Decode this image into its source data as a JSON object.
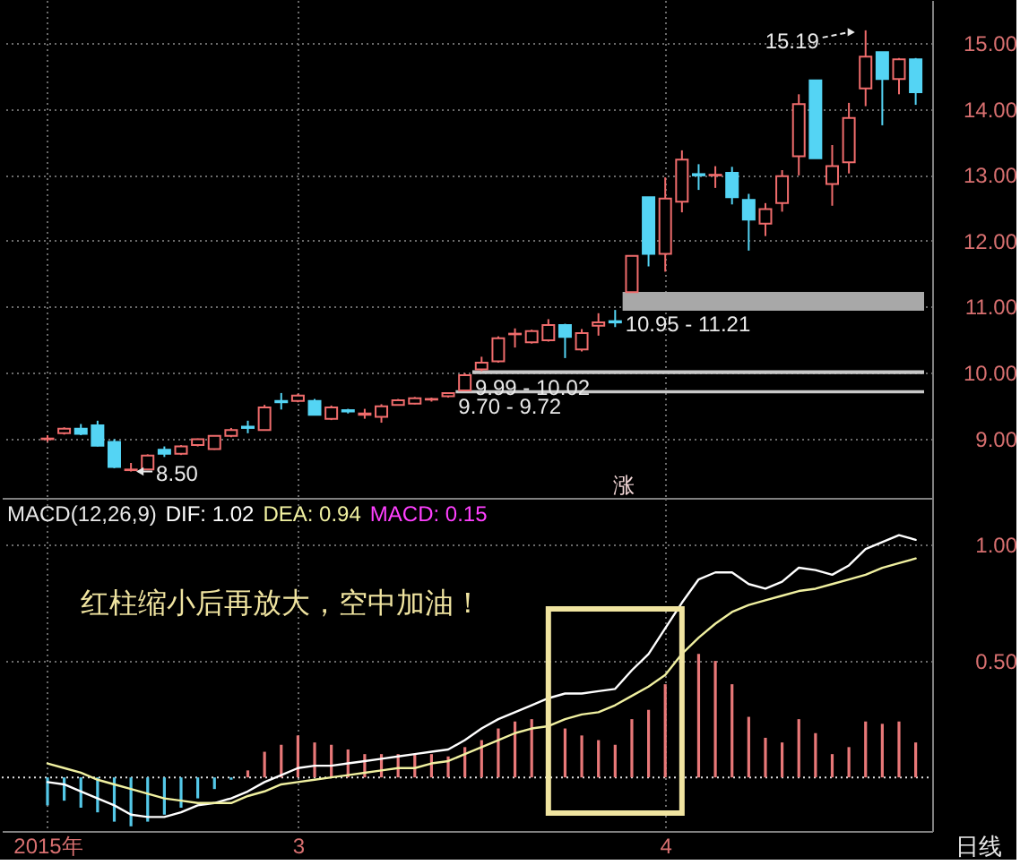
{
  "chart_data": [
    {
      "type": "candlestick",
      "categories": [
        null,
        null,
        null,
        null,
        null,
        null,
        null,
        null,
        null,
        null,
        null,
        null,
        null,
        null,
        null,
        null,
        null,
        null,
        null,
        null,
        null,
        null,
        null,
        null,
        null,
        null,
        null,
        null,
        null,
        null,
        null,
        null,
        null,
        null,
        null,
        null,
        null,
        null,
        null,
        null,
        null,
        null,
        null,
        null,
        null,
        null,
        null,
        null,
        null,
        null,
        null,
        null,
        null
      ],
      "ohlc": [
        [
          8.99,
          9.05,
          8.95,
          9.0
        ],
        [
          9.08,
          9.17,
          9.06,
          9.15
        ],
        [
          9.15,
          9.22,
          9.05,
          9.07
        ],
        [
          9.2,
          9.27,
          8.88,
          8.89
        ],
        [
          8.95,
          8.99,
          8.55,
          8.57
        ],
        [
          8.52,
          8.63,
          8.5,
          8.53
        ],
        [
          8.53,
          8.76,
          8.52,
          8.74
        ],
        [
          8.83,
          8.88,
          8.72,
          8.77
        ],
        [
          8.77,
          8.9,
          8.75,
          8.88
        ],
        [
          8.9,
          9.0,
          8.88,
          8.99
        ],
        [
          8.84,
          9.05,
          8.83,
          9.04
        ],
        [
          9.04,
          9.16,
          9.02,
          9.13
        ],
        [
          9.18,
          9.27,
          9.08,
          9.16
        ],
        [
          9.13,
          9.51,
          9.12,
          9.47
        ],
        [
          9.57,
          9.69,
          9.44,
          9.55
        ],
        [
          9.57,
          9.68,
          9.55,
          9.65
        ],
        [
          9.57,
          9.6,
          9.35,
          9.36
        ],
        [
          9.3,
          9.5,
          9.28,
          9.47
        ],
        [
          9.43,
          9.45,
          9.38,
          9.41
        ],
        [
          9.36,
          9.45,
          9.3,
          9.38
        ],
        [
          9.33,
          9.52,
          9.24,
          9.49
        ],
        [
          9.51,
          9.6,
          9.5,
          9.58
        ],
        [
          9.53,
          9.63,
          9.52,
          9.61
        ],
        [
          9.59,
          9.62,
          9.56,
          9.6
        ],
        [
          9.64,
          9.7,
          9.62,
          9.69
        ],
        [
          9.73,
          9.99,
          9.72,
          9.96
        ],
        [
          10.05,
          10.24,
          10.02,
          10.15
        ],
        [
          10.17,
          10.55,
          10.15,
          10.52
        ],
        [
          10.58,
          10.67,
          10.38,
          10.59
        ],
        [
          10.46,
          10.65,
          10.44,
          10.63
        ],
        [
          10.49,
          10.81,
          10.47,
          10.72
        ],
        [
          10.72,
          10.74,
          10.22,
          10.54
        ],
        [
          10.35,
          10.66,
          10.32,
          10.6
        ],
        [
          10.71,
          10.9,
          10.56,
          10.76
        ],
        [
          10.78,
          10.95,
          10.69,
          10.76
        ],
        [
          11.22,
          11.78,
          11.21,
          11.77
        ],
        [
          12.66,
          12.66,
          11.61,
          11.8
        ],
        [
          11.8,
          12.96,
          11.53,
          12.64
        ],
        [
          12.59,
          13.37,
          12.43,
          13.23
        ],
        [
          13.01,
          13.16,
          12.77,
          12.99
        ],
        [
          12.99,
          13.13,
          12.8,
          13.0
        ],
        [
          13.03,
          13.12,
          12.55,
          12.66
        ],
        [
          12.62,
          12.71,
          11.85,
          12.32
        ],
        [
          12.26,
          12.57,
          12.07,
          12.48
        ],
        [
          12.57,
          13.07,
          12.44,
          12.98
        ],
        [
          13.28,
          14.22,
          12.99,
          14.07
        ],
        [
          14.43,
          14.43,
          13.25,
          13.25
        ],
        [
          12.86,
          13.45,
          12.53,
          13.13
        ],
        [
          13.19,
          14.09,
          13.02,
          13.86
        ],
        [
          14.31,
          15.19,
          14.04,
          14.79
        ],
        [
          14.86,
          14.86,
          13.75,
          14.45
        ],
        [
          14.45,
          14.77,
          14.22,
          14.75
        ],
        [
          14.75,
          14.77,
          14.06,
          14.25
        ]
      ],
      "colors": [
        "#f06c6c",
        "#f06c6c",
        "#54d4f4",
        "#54d4f4",
        "#54d4f4",
        "#f06c6c",
        "#f06c6c",
        "#54d4f4",
        "#f06c6c",
        "#f06c6c",
        "#f06c6c",
        "#f06c6c",
        "#54d4f4",
        "#f06c6c",
        "#54d4f4",
        "#f06c6c",
        "#54d4f4",
        "#f06c6c",
        "#54d4f4",
        "#f06c6c",
        "#f06c6c",
        "#f06c6c",
        "#f06c6c",
        "#f06c6c",
        "#f06c6c",
        "#f06c6c",
        "#f06c6c",
        "#f06c6c",
        "#f06c6c",
        "#f06c6c",
        "#f06c6c",
        "#54d4f4",
        "#f06c6c",
        "#f06c6c",
        "#54d4f4",
        "#f06c6c",
        "#54d4f4",
        "#f06c6c",
        "#f06c6c",
        "#54d4f4",
        "#f06c6c",
        "#54d4f4",
        "#54d4f4",
        "#f06c6c",
        "#f06c6c",
        "#f06c6c",
        "#54d4f4",
        "#f06c6c",
        "#f06c6c",
        "#f06c6c",
        "#54d4f4",
        "#f06c6c",
        "#54d4f4"
      ],
      "ylim": [
        8.1,
        15.65
      ],
      "yticks": [
        {
          "value": 9,
          "label": "9.00"
        },
        {
          "value": 10,
          "label": "10.00"
        },
        {
          "value": 11,
          "label": "11.00"
        },
        {
          "value": 12,
          "label": "12.00"
        },
        {
          "value": 13,
          "label": "13.00"
        },
        {
          "value": 14,
          "label": "14.00"
        },
        {
          "value": 15,
          "label": "15.00"
        }
      ],
      "grid": true,
      "bands": [
        {
          "axis": "y",
          "from": 9.7,
          "to": 9.72,
          "label": "9.70 - 9.72",
          "color": "#c8c8c8"
        },
        {
          "axis": "y",
          "from": 9.99,
          "to": 10.02,
          "label": "9.99 - 10.02",
          "color": "#c8c8c8"
        },
        {
          "axis": "y",
          "from": 10.95,
          "to": 11.21,
          "label": "10.95 - 11.21",
          "color": "#a8a8a8"
        }
      ],
      "annotations": [
        "15.19",
        "8.50",
        "涨"
      ]
    },
    {
      "type": "bar",
      "title": "MACD(12,26,9)",
      "categories": [
        "2015年",
        null,
        null,
        null,
        null,
        null,
        null,
        null,
        null,
        null,
        null,
        null,
        null,
        null,
        null,
        "3",
        null,
        null,
        null,
        null,
        null,
        null,
        null,
        null,
        null,
        null,
        null,
        null,
        null,
        null,
        null,
        null,
        null,
        null,
        null,
        null,
        null,
        "4",
        null,
        null,
        null,
        null,
        null,
        null,
        null,
        null,
        null,
        null,
        null,
        null,
        null,
        null,
        null
      ],
      "series": [
        {
          "name": "DIF: 1.02",
          "type": "line",
          "color": "#ffffff",
          "values": [
            -0.02,
            -0.03,
            -0.06,
            -0.09,
            -0.12,
            -0.16,
            -0.17,
            -0.17,
            -0.15,
            -0.12,
            -0.11,
            -0.09,
            -0.06,
            -0.02,
            0.01,
            0.04,
            0.05,
            0.05,
            0.06,
            0.07,
            0.08,
            0.09,
            0.1,
            0.11,
            0.12,
            0.16,
            0.21,
            0.25,
            0.28,
            0.31,
            0.34,
            0.36,
            0.36,
            0.37,
            0.38,
            0.46,
            0.53,
            0.64,
            0.75,
            0.85,
            0.88,
            0.88,
            0.83,
            0.81,
            0.84,
            0.9,
            0.89,
            0.87,
            0.91,
            0.98,
            1.01,
            1.04,
            1.02
          ]
        },
        {
          "name": "DEA: 0.94",
          "type": "line",
          "color": "#f0f0a0",
          "values": [
            0.06,
            0.04,
            0.02,
            -0.01,
            -0.03,
            -0.05,
            -0.07,
            -0.09,
            -0.1,
            -0.11,
            -0.11,
            -0.11,
            -0.08,
            -0.06,
            -0.03,
            -0.02,
            -0.01,
            0.0,
            0.01,
            0.02,
            0.03,
            0.04,
            0.04,
            0.06,
            0.07,
            0.1,
            0.13,
            0.16,
            0.19,
            0.21,
            0.22,
            0.25,
            0.27,
            0.28,
            0.31,
            0.35,
            0.39,
            0.44,
            0.53,
            0.6,
            0.66,
            0.71,
            0.74,
            0.76,
            0.78,
            0.8,
            0.81,
            0.83,
            0.85,
            0.87,
            0.9,
            0.92,
            0.94
          ]
        },
        {
          "values": [
            -0.12,
            -0.1,
            -0.13,
            -0.15,
            -0.19,
            -0.21,
            -0.19,
            -0.16,
            -0.13,
            -0.09,
            -0.05,
            -0.01,
            0.03,
            0.11,
            0.14,
            0.18,
            0.15,
            0.14,
            0.12,
            0.1,
            0.1,
            0.1,
            0.1,
            0.1,
            0.09,
            0.13,
            0.16,
            0.21,
            0.24,
            0.25,
            null,
            0.21,
            0.18,
            0.16,
            0.14,
            0.25,
            0.29,
            0.4,
            null,
            0.53,
            0.5,
            0.4,
            0.26,
            0.17,
            0.15,
            0.25,
            0.19,
            0.1,
            0.13,
            0.24,
            0.23,
            0.24,
            0.15
          ],
          "colors": [
            "#54c8e8",
            "#54c8e8",
            "#54c8e8",
            "#54c8e8",
            "#54c8e8",
            "#54c8e8",
            "#54c8e8",
            "#54c8e8",
            "#54c8e8",
            "#54c8e8",
            "#54c8e8",
            "#54c8e8",
            "#e87878",
            "#e87878",
            "#e87878",
            "#e87878",
            "#e87878",
            "#e87878",
            "#e87878",
            "#e87878",
            "#e87878",
            "#e87878",
            "#e87878",
            "#e87878",
            "#e87878",
            "#e87878",
            "#e87878",
            "#e87878",
            "#e87878",
            "#e87878",
            null,
            "#e87878",
            "#e87878",
            "#e87878",
            "#e87878",
            "#e87878",
            "#e87878",
            "#e87878",
            null,
            "#e87878",
            "#e87878",
            "#e87878",
            "#e87878",
            "#e87878",
            "#e87878",
            "#e87878",
            "#e87878",
            "#e87878",
            "#e87878",
            "#e87878",
            "#e87878",
            "#e87878",
            "#e87878"
          ]
        }
      ],
      "ylim": [
        -0.23,
        1.2
      ],
      "yticks": [
        {
          "value": 0.5,
          "label": "0.50"
        },
        {
          "value": 1,
          "label": "1.00"
        }
      ],
      "grid": true,
      "legend": "top left",
      "ref_lines": [
        {
          "axis": "y",
          "value": 0,
          "color": "#e0e0e0",
          "line_style": "dotted"
        }
      ],
      "annotations": [
        "MACD: 0.15",
        "红柱缩小后再放大，空中加油！",
        "日线"
      ]
    }
  ]
}
